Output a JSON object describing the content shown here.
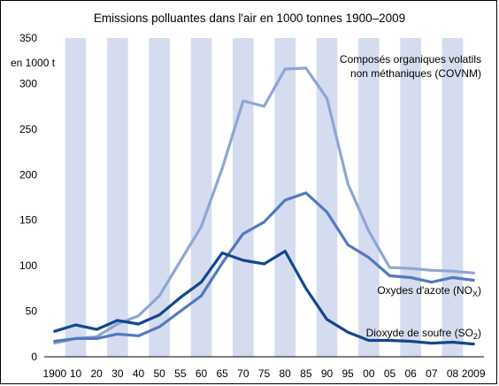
{
  "chart_data": {
    "type": "line",
    "title": "Emissions polluantes dans l'air en 1000 tonnes 1900–2009",
    "ylabel": "en 1000 t",
    "xlabel": "",
    "ylim": [
      0,
      350
    ],
    "yticks": [
      0,
      50,
      100,
      150,
      200,
      250,
      300,
      350
    ],
    "grid": "alternating vertical bands",
    "legend": "inline labels",
    "categories": [
      "1900",
      "10",
      "20",
      "30",
      "40",
      "50",
      "55",
      "60",
      "65",
      "70",
      "75",
      "80",
      "85",
      "90",
      "95",
      "00",
      "05",
      "06",
      "07",
      "08",
      "2009"
    ],
    "band_color": "#d5dcef",
    "series": [
      {
        "name": "Composés organiques volatils non méthaniques (COVNM)",
        "label_lines": [
          "Composés organiques volatils",
          "non méthaniques (COVNM)"
        ],
        "color": "#8ea6d6",
        "values": [
          15,
          20,
          22,
          36,
          45,
          67,
          105,
          143,
          207,
          281,
          275,
          316,
          317,
          284,
          190,
          138,
          98,
          97,
          95,
          94,
          92
        ]
      },
      {
        "name": "Oxydes d'azote (NOX)",
        "label_main": "Oxydes d'azote (NO",
        "label_sub": "X",
        "label_end": ")",
        "color": "#5179c0",
        "values": [
          17,
          20,
          20,
          25,
          23,
          33,
          50,
          67,
          103,
          135,
          148,
          172,
          180,
          159,
          123,
          109,
          89,
          87,
          82,
          87,
          84
        ]
      },
      {
        "name": "Dioxyde de soufre (SO2)",
        "label_main": "Dioxyde de soufre (SO",
        "label_sub": "2",
        "label_end": ")",
        "color": "#12468f",
        "values": [
          28,
          35,
          30,
          40,
          36,
          46,
          65,
          82,
          114,
          106,
          102,
          116,
          75,
          41,
          27,
          18,
          18,
          17,
          15,
          16,
          14
        ]
      }
    ]
  }
}
